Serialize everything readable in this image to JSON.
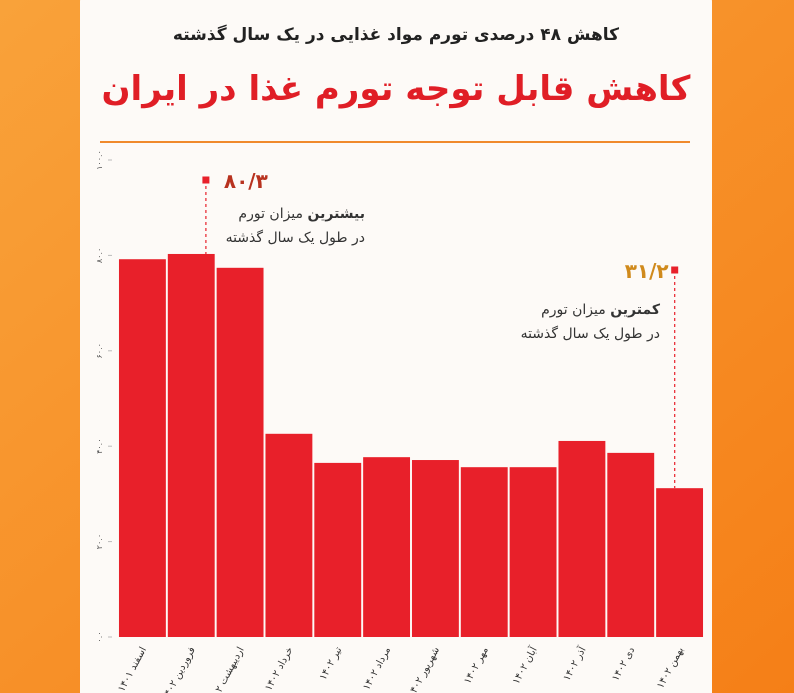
{
  "chart_data": {
    "type": "bar",
    "subtitle": "کاهش ۴۸ درصدی تورم مواد غذایی در یک سال گذشته",
    "title": "کاهش قابل توجه تورم غذا در ایران",
    "categories": [
      "اسفند ۱۴۰۱",
      "فروردین ۱۴۰۲",
      "اردیبهشت ۱۴۰۲",
      "خرداد ۱۴۰۲",
      "تیر ۱۴۰۲",
      "مرداد ۱۴۰۲",
      "شهریور ۱۴۰۲",
      "مهر ۱۴۰۲",
      "آبان ۱۴۰۲",
      "آذر ۱۴۰۲",
      "دی ۱۴۰۲",
      "بهمن ۱۴۰۲"
    ],
    "values": [
      79.2,
      80.3,
      77.4,
      42.6,
      36.5,
      37.7,
      37.1,
      35.6,
      35.6,
      41.1,
      38.6,
      31.2
    ],
    "value_labels": [
      null,
      "۸۰/۳",
      null,
      null,
      null,
      null,
      null,
      null,
      null,
      null,
      null,
      "۳۱/۲"
    ],
    "color": "#e8202a",
    "ylim": [
      0,
      100
    ],
    "yticks": [
      {
        "value": 0,
        "label": "۰.۰"
      },
      {
        "value": 20,
        "label": "۲۰.۰"
      },
      {
        "value": 40,
        "label": "۴۰.۰"
      },
      {
        "value": 60,
        "label": "۶۰.۰"
      },
      {
        "value": 80,
        "label": "۸۰.۰"
      },
      {
        "value": 100,
        "label": "۱۰۰.۰"
      }
    ],
    "annotations": [
      {
        "index": 1,
        "bold": "بیشترین",
        "text": "میزان تورم",
        "note": "در طول یک سال گذشته"
      },
      {
        "index": 11,
        "bold": "کمترین",
        "text": "میزان تورم",
        "note": "در طول یک سال گذشته"
      }
    ]
  }
}
